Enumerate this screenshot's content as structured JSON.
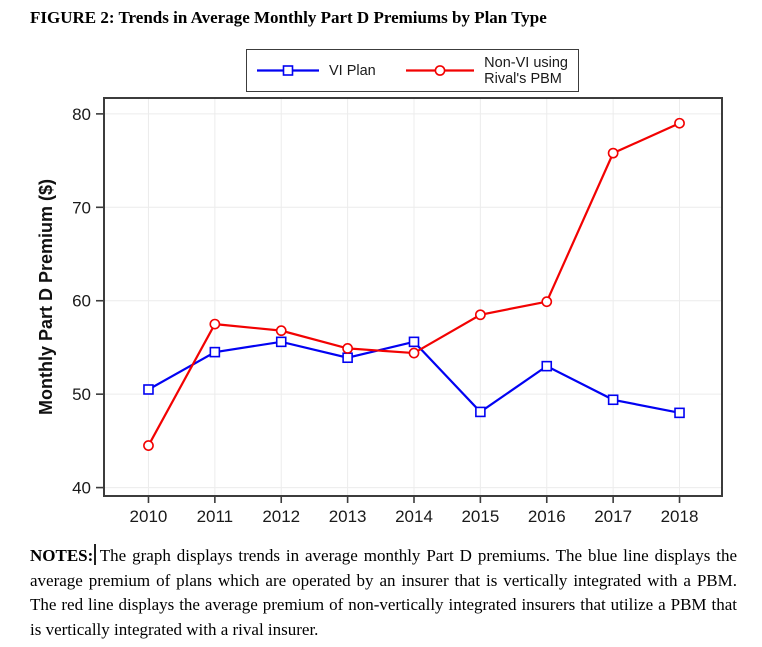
{
  "figure_title": "FIGURE 2: Trends in Average Monthly Part D Premiums by Plan Type",
  "legend": {
    "items": [
      {
        "label": "VI Plan",
        "color": "#0202f2",
        "marker": "square"
      },
      {
        "label": "Non-VI using Rival's PBM",
        "label_lines": [
          "Non-VI using",
          "Rival's PBM"
        ],
        "color": "#f20202",
        "marker": "circle"
      }
    ]
  },
  "chart_data": {
    "type": "line",
    "title": "FIGURE 2: Trends in Average Monthly Part D Premiums by Plan Type",
    "xlabel": "",
    "ylabel": "Monthly Part D Premium ($)",
    "x": [
      2010,
      2011,
      2012,
      2013,
      2014,
      2015,
      2016,
      2017,
      2018
    ],
    "series": [
      {
        "name": "VI Plan",
        "color": "#0202f2",
        "marker": "square",
        "values": [
          50.5,
          54.5,
          55.6,
          53.9,
          55.6,
          48.1,
          53.0,
          49.4,
          48.0
        ]
      },
      {
        "name": "Non-VI using Rival's PBM",
        "color": "#f20202",
        "marker": "circle",
        "values": [
          44.5,
          57.5,
          56.8,
          54.9,
          54.4,
          58.5,
          59.9,
          75.8,
          79.0
        ]
      }
    ],
    "yticks": [
      40,
      50,
      60,
      70,
      80
    ],
    "ylim": [
      39.1,
      81.7
    ],
    "grid": true,
    "legend_position": "top-center",
    "grid_color": "#ececec",
    "axis_color": "#3c3c3c"
  },
  "notes": {
    "label": "NOTES:",
    "text": "The graph displays trends in average monthly Part D premiums. The blue line displays the average premium of plans which are operated by an insurer that is vertically integrated with a PBM. The red line displays the average premium of non-vertically integrated insurers that utilize a PBM that is vertically integrated with a rival insurer."
  }
}
